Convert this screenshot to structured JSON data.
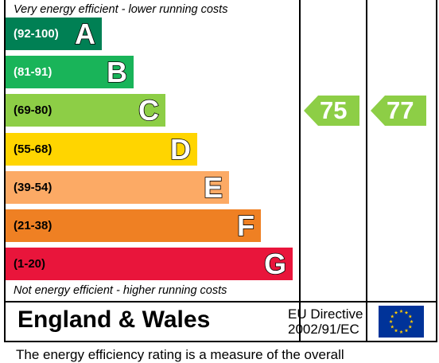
{
  "chart_data": {
    "type": "bar",
    "title": "",
    "top_caption": "Very energy efficient - lower running costs",
    "bottom_caption": "Not energy efficient - higher running costs",
    "bands": [
      {
        "range": "(92-100)",
        "letter": "A",
        "color": "#008054",
        "text_color": "#ffffff"
      },
      {
        "range": "(81-91)",
        "letter": "B",
        "color": "#19b459",
        "text_color": "#ffffff"
      },
      {
        "range": "(69-80)",
        "letter": "C",
        "color": "#8dce46",
        "text_color": "#000000"
      },
      {
        "range": "(55-68)",
        "letter": "D",
        "color": "#ffd500",
        "text_color": "#000000"
      },
      {
        "range": "(39-54)",
        "letter": "E",
        "color": "#fcaa65",
        "text_color": "#000000"
      },
      {
        "range": "(21-38)",
        "letter": "F",
        "color": "#ef8023",
        "text_color": "#000000"
      },
      {
        "range": "(1-20)",
        "letter": "G",
        "color": "#e9153b",
        "text_color": "#000000"
      }
    ],
    "ratings": [
      {
        "value": 75,
        "band": "C",
        "color": "#8dce46"
      },
      {
        "value": 77,
        "band": "C",
        "color": "#8dce46"
      }
    ]
  },
  "region": "England & Wales",
  "directive": {
    "line1": "EU Directive",
    "line2": "2002/91/EC"
  },
  "flag": {
    "name": "eu-flag-icon",
    "background": "#003399",
    "stars": "#ffcc00"
  },
  "footer_text": "The energy efficiency rating is a measure of the overall"
}
